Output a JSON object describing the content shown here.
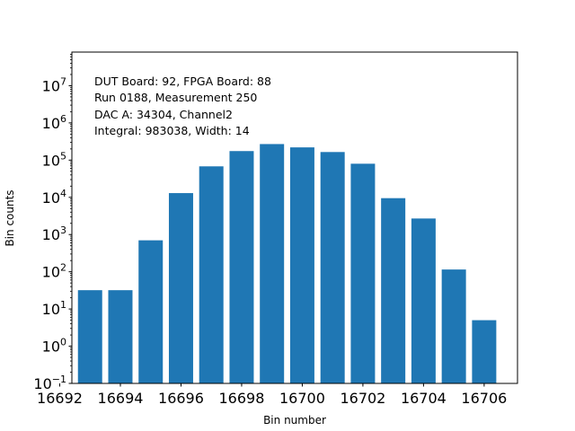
{
  "chart_data": {
    "type": "bar",
    "title": "",
    "xlabel": "Bin number",
    "ylabel": "Bin counts",
    "y_scale": "log",
    "ylim": [
      0.1,
      80000000
    ],
    "xlim": [
      16692.4,
      16707.1
    ],
    "color": "#1f77b4",
    "grid": false,
    "x": [
      16693,
      16694,
      16695,
      16696,
      16697,
      16698,
      16699,
      16700,
      16701,
      16702,
      16703,
      16704,
      16705,
      16706
    ],
    "values": [
      32,
      32,
      700,
      13000,
      68000,
      175000,
      270000,
      220000,
      165000,
      80000,
      9500,
      2700,
      115,
      5
    ],
    "x_ticks": [
      {
        "value": 16692,
        "label": "16692"
      },
      {
        "value": 16694,
        "label": "16694"
      },
      {
        "value": 16696,
        "label": "16696"
      },
      {
        "value": 16698,
        "label": "16698"
      },
      {
        "value": 16700,
        "label": "16700"
      },
      {
        "value": 16702,
        "label": "16702"
      },
      {
        "value": 16704,
        "label": "16704"
      },
      {
        "value": 16706,
        "label": "16706"
      }
    ],
    "y_ticks": [
      {
        "value": 0.1,
        "base": "10",
        "exp": "−1"
      },
      {
        "value": 1,
        "base": "10",
        "exp": "0"
      },
      {
        "value": 10,
        "base": "10",
        "exp": "1"
      },
      {
        "value": 100,
        "base": "10",
        "exp": "2"
      },
      {
        "value": 1000,
        "base": "10",
        "exp": "3"
      },
      {
        "value": 10000,
        "base": "10",
        "exp": "4"
      },
      {
        "value": 100000,
        "base": "10",
        "exp": "5"
      },
      {
        "value": 1000000,
        "base": "10",
        "exp": "6"
      },
      {
        "value": 10000000,
        "base": "10",
        "exp": "7"
      }
    ],
    "annotations": [
      "DUT Board: 92, FPGA Board: 88",
      "Run 0188, Measurement 250",
      "DAC A: 34304, Channel2",
      "Integral: 983038, Width: 14"
    ]
  }
}
